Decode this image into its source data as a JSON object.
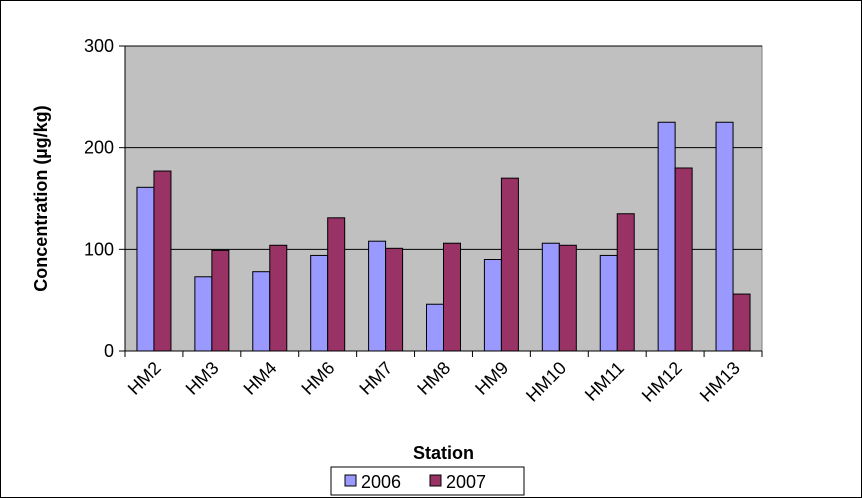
{
  "colors": {
    "plot_background": "#c0c0c0",
    "series_2006": "#9999ff",
    "series_2007": "#993366",
    "gridline": "#000000",
    "outer_border": "#000000"
  },
  "chart_data": {
    "type": "bar",
    "title": "",
    "xlabel": "Station",
    "ylabel": "Concentration (µg/kg)",
    "ylim": [
      0,
      300
    ],
    "yticks": [
      0,
      100,
      200,
      300
    ],
    "grid": true,
    "legend_position": "bottom",
    "categories": [
      "HM2",
      "HM3",
      "HM4",
      "HM6",
      "HM7",
      "HM8",
      "HM9",
      "HM10",
      "HM11",
      "HM12",
      "HM13"
    ],
    "series": [
      {
        "name": "2006",
        "color": "#9999ff",
        "values": [
          161,
          73,
          78,
          94,
          108,
          46,
          90,
          106,
          94,
          225,
          225
        ]
      },
      {
        "name": "2007",
        "color": "#993366",
        "values": [
          177,
          99,
          104,
          131,
          101,
          106,
          170,
          104,
          135,
          180,
          56
        ]
      }
    ]
  }
}
